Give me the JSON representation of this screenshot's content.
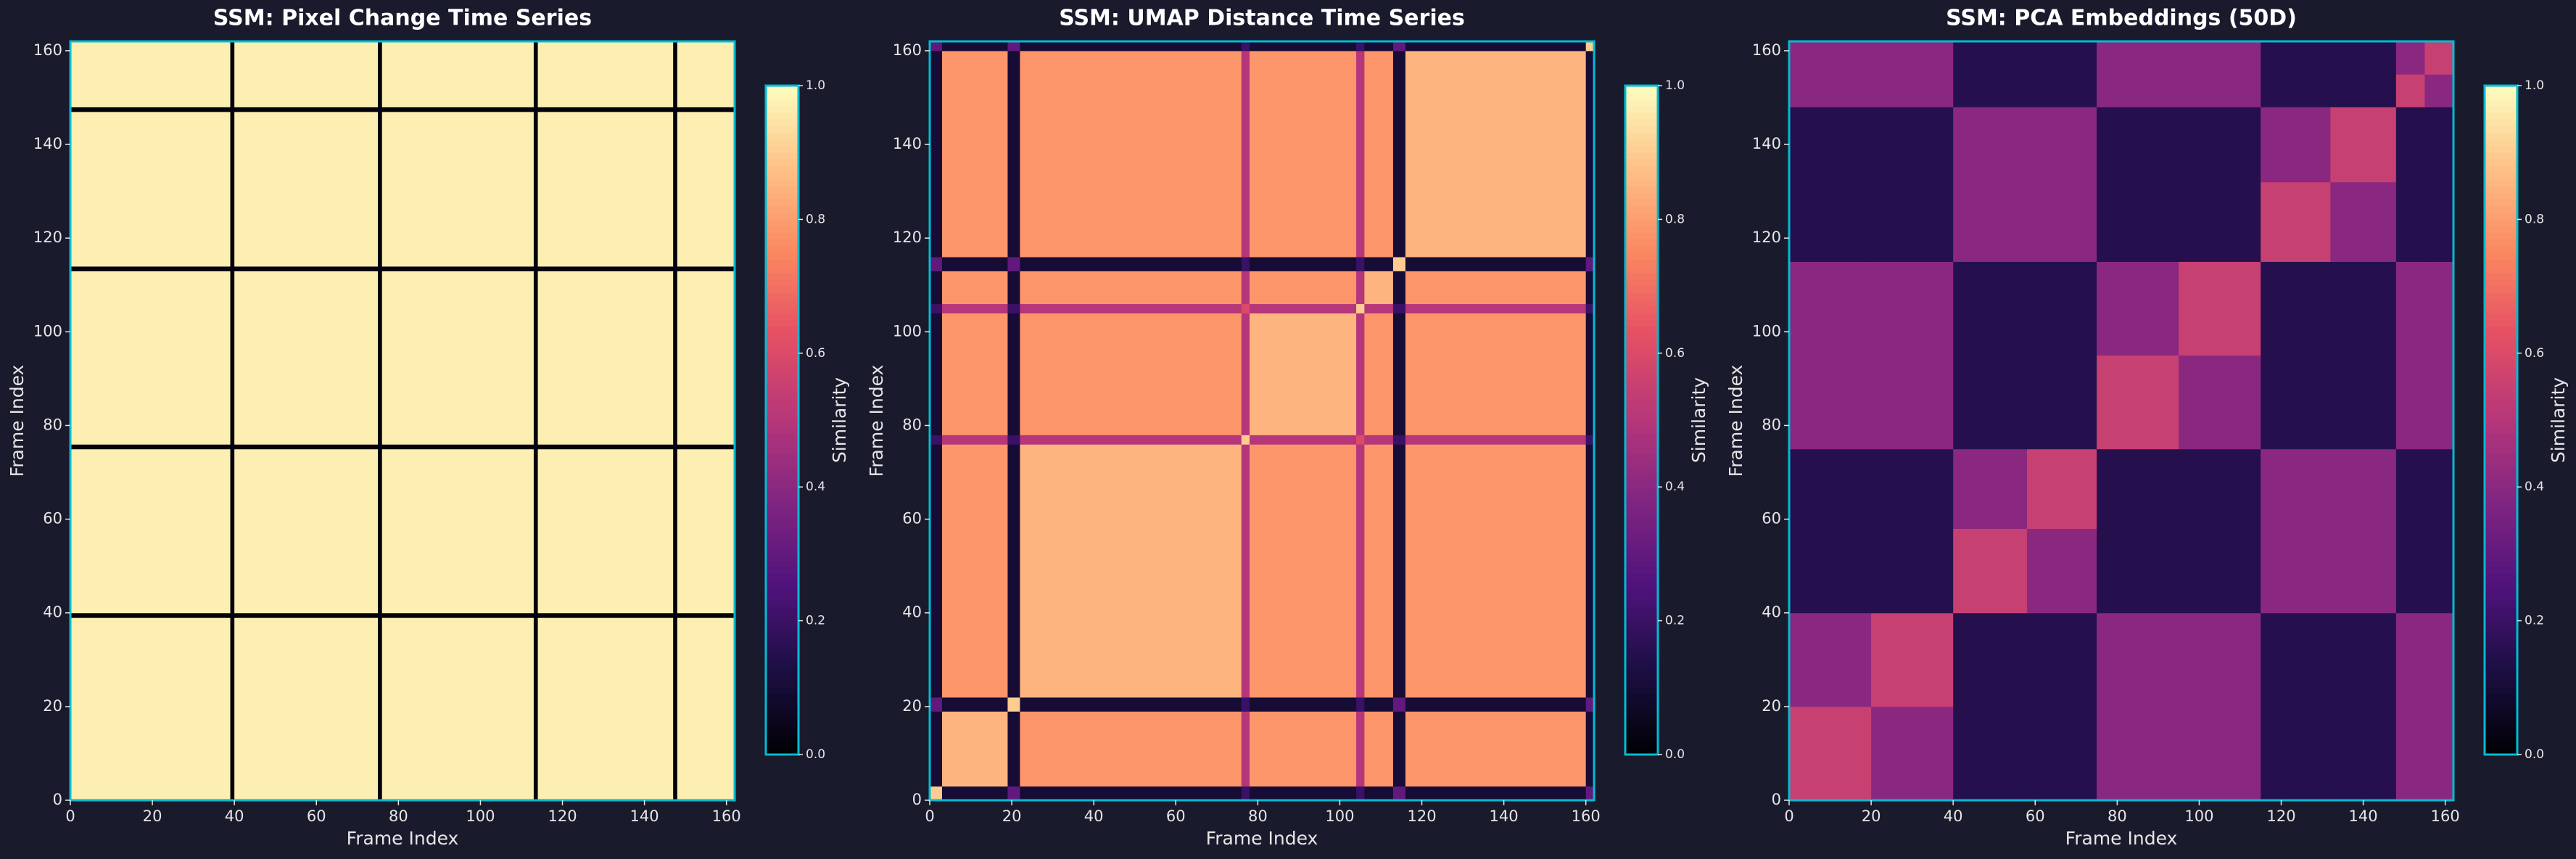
{
  "chart_data": [
    {
      "type": "heatmap",
      "title": "SSM: Pixel Change Time Series",
      "x_label": "Frame Index",
      "y_label": "Frame Index",
      "colorbar_label": "Similarity",
      "colormap": "magma",
      "border_color": "#00bcd4",
      "xlim": [
        0,
        162
      ],
      "ylim": [
        0,
        162
      ],
      "xticks": [
        0,
        20,
        40,
        60,
        80,
        100,
        120,
        140,
        160
      ],
      "yticks": [
        0,
        20,
        40,
        60,
        80,
        100,
        120,
        140,
        160
      ],
      "clim": [
        0,
        1
      ],
      "cticks": [
        {
          "value": 0,
          "label": "0.0"
        },
        {
          "value": 0.2,
          "label": "0.2"
        },
        {
          "value": 0.4,
          "label": "0.4"
        },
        {
          "value": 0.6,
          "label": "0.6"
        },
        {
          "value": 0.8,
          "label": "0.8"
        },
        {
          "value": 1,
          "label": "1.0"
        }
      ],
      "x_edges": [
        0,
        39,
        40,
        75,
        76,
        113,
        114,
        147,
        148,
        162
      ],
      "y_edges": [
        0,
        39,
        40,
        75,
        76,
        113,
        114,
        147,
        148,
        162
      ],
      "values": [
        [
          0.97,
          0.02,
          0.97,
          0.02,
          0.97,
          0.02,
          0.97,
          0.02,
          0.97
        ],
        [
          0.02,
          0.02,
          0.02,
          0.02,
          0.02,
          0.02,
          0.02,
          0.02,
          0.02
        ],
        [
          0.97,
          0.02,
          0.97,
          0.02,
          0.97,
          0.02,
          0.97,
          0.02,
          0.97
        ],
        [
          0.02,
          0.02,
          0.02,
          0.02,
          0.02,
          0.02,
          0.02,
          0.02,
          0.02
        ],
        [
          0.97,
          0.02,
          0.97,
          0.02,
          0.97,
          0.02,
          0.97,
          0.02,
          0.97
        ],
        [
          0.02,
          0.02,
          0.02,
          0.02,
          0.02,
          0.02,
          0.02,
          0.02,
          0.02
        ],
        [
          0.97,
          0.02,
          0.97,
          0.02,
          0.97,
          0.02,
          0.97,
          0.02,
          0.97
        ],
        [
          0.02,
          0.02,
          0.02,
          0.02,
          0.02,
          0.02,
          0.02,
          0.02,
          0.02
        ],
        [
          0.97,
          0.02,
          0.97,
          0.02,
          0.97,
          0.02,
          0.97,
          0.02,
          0.97
        ]
      ]
    },
    {
      "type": "heatmap",
      "title": "SSM: UMAP Distance Time Series",
      "x_label": "Frame Index",
      "y_label": "Frame Index",
      "colorbar_label": "Similarity",
      "colormap": "magma",
      "border_color": "#00bcd4",
      "xlim": [
        0,
        162
      ],
      "ylim": [
        0,
        162
      ],
      "xticks": [
        0,
        20,
        40,
        60,
        80,
        100,
        120,
        140,
        160
      ],
      "yticks": [
        0,
        20,
        40,
        60,
        80,
        100,
        120,
        140,
        160
      ],
      "clim": [
        0,
        1
      ],
      "cticks": [
        {
          "value": 0,
          "label": "0.0"
        },
        {
          "value": 0.2,
          "label": "0.2"
        },
        {
          "value": 0.4,
          "label": "0.4"
        },
        {
          "value": 0.6,
          "label": "0.6"
        },
        {
          "value": 0.8,
          "label": "0.8"
        },
        {
          "value": 1,
          "label": "1.0"
        }
      ],
      "x_edges": [
        0,
        3,
        19,
        22,
        76,
        78,
        104,
        106,
        113,
        116,
        160,
        162
      ],
      "y_edges": [
        0,
        3,
        19,
        22,
        76,
        78,
        104,
        106,
        113,
        116,
        160,
        162
      ],
      "values": [
        [
          0.9,
          0.1,
          0.3,
          0.1,
          0.2,
          0.1,
          0.2,
          0.1,
          0.3,
          0.1,
          0.3
        ],
        [
          0.1,
          0.85,
          0.1,
          0.78,
          0.5,
          0.78,
          0.5,
          0.78,
          0.1,
          0.78,
          0.1
        ],
        [
          0.3,
          0.1,
          0.9,
          0.1,
          0.2,
          0.1,
          0.2,
          0.1,
          0.3,
          0.1,
          0.3
        ],
        [
          0.1,
          0.78,
          0.1,
          0.85,
          0.5,
          0.78,
          0.5,
          0.78,
          0.1,
          0.78,
          0.1
        ],
        [
          0.2,
          0.5,
          0.2,
          0.5,
          0.9,
          0.5,
          0.6,
          0.5,
          0.2,
          0.5,
          0.2
        ],
        [
          0.1,
          0.78,
          0.1,
          0.78,
          0.5,
          0.85,
          0.5,
          0.78,
          0.1,
          0.78,
          0.1
        ],
        [
          0.2,
          0.5,
          0.2,
          0.5,
          0.6,
          0.5,
          0.9,
          0.5,
          0.2,
          0.5,
          0.2
        ],
        [
          0.1,
          0.78,
          0.1,
          0.78,
          0.5,
          0.78,
          0.5,
          0.85,
          0.1,
          0.78,
          0.1
        ],
        [
          0.3,
          0.1,
          0.3,
          0.1,
          0.2,
          0.1,
          0.2,
          0.1,
          0.9,
          0.1,
          0.3
        ],
        [
          0.1,
          0.78,
          0.1,
          0.78,
          0.5,
          0.78,
          0.5,
          0.78,
          0.1,
          0.85,
          0.1
        ],
        [
          0.3,
          0.1,
          0.3,
          0.1,
          0.2,
          0.1,
          0.2,
          0.1,
          0.3,
          0.1,
          0.9
        ]
      ]
    },
    {
      "type": "heatmap",
      "title": "SSM: PCA Embeddings (50D)",
      "x_label": "Frame Index",
      "y_label": "Frame Index",
      "colorbar_label": "Similarity",
      "colormap": "magma",
      "border_color": "#00bcd4",
      "xlim": [
        0,
        162
      ],
      "ylim": [
        0,
        162
      ],
      "xticks": [
        0,
        20,
        40,
        60,
        80,
        100,
        120,
        140,
        160
      ],
      "yticks": [
        0,
        20,
        40,
        60,
        80,
        100,
        120,
        140,
        160
      ],
      "clim": [
        0,
        1
      ],
      "cticks": [
        {
          "value": 0,
          "label": "0.0"
        },
        {
          "value": 0.2,
          "label": "0.2"
        },
        {
          "value": 0.4,
          "label": "0.4"
        },
        {
          "value": 0.6,
          "label": "0.6"
        },
        {
          "value": 0.8,
          "label": "0.8"
        },
        {
          "value": 1,
          "label": "1.0"
        }
      ],
      "x_edges": [
        0,
        20,
        40,
        58,
        75,
        95,
        115,
        132,
        148,
        155,
        162
      ],
      "y_edges": [
        0,
        20,
        40,
        58,
        75,
        95,
        115,
        132,
        148,
        155,
        162
      ],
      "values": [
        [
          0.55,
          0.4,
          0.15,
          0.15,
          0.4,
          0.4,
          0.15,
          0.15,
          0.4,
          0.4
        ],
        [
          0.4,
          0.55,
          0.15,
          0.15,
          0.4,
          0.4,
          0.15,
          0.15,
          0.4,
          0.4
        ],
        [
          0.15,
          0.15,
          0.55,
          0.4,
          0.15,
          0.15,
          0.4,
          0.4,
          0.15,
          0.15
        ],
        [
          0.15,
          0.15,
          0.4,
          0.55,
          0.15,
          0.15,
          0.4,
          0.4,
          0.15,
          0.15
        ],
        [
          0.4,
          0.4,
          0.15,
          0.15,
          0.55,
          0.4,
          0.15,
          0.15,
          0.4,
          0.4
        ],
        [
          0.4,
          0.4,
          0.15,
          0.15,
          0.4,
          0.55,
          0.15,
          0.15,
          0.4,
          0.4
        ],
        [
          0.15,
          0.15,
          0.4,
          0.4,
          0.15,
          0.15,
          0.55,
          0.4,
          0.15,
          0.15
        ],
        [
          0.15,
          0.15,
          0.4,
          0.4,
          0.15,
          0.15,
          0.4,
          0.55,
          0.15,
          0.15
        ],
        [
          0.4,
          0.4,
          0.15,
          0.15,
          0.4,
          0.4,
          0.15,
          0.15,
          0.55,
          0.4
        ],
        [
          0.4,
          0.4,
          0.15,
          0.15,
          0.4,
          0.4,
          0.15,
          0.15,
          0.4,
          0.55
        ]
      ]
    }
  ]
}
